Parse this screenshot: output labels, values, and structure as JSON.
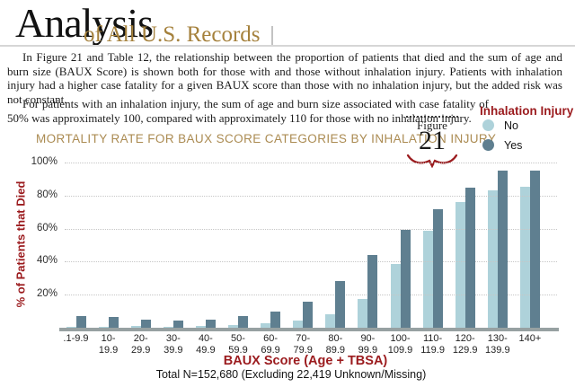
{
  "header": {
    "title": "Analysis",
    "subtitle": "of All U.S. Records"
  },
  "paragraphs": {
    "p1": "In Figure 21 and Table 12, the relationship between the proportion of patients that died and the sum of age and burn size (BAUX Score) is shown both for those with and those without inhalation injury.  Patients with inhalation injury had a higher case fatality for a given BAUX score than those with no inhalation injury, but the added risk was not constant.",
    "p2": "For patients with an inhalation injury, the sum of age and burn size associated with case fatality of 50% was approximately 100, compared with approximately 110 for those with no inhalation injury."
  },
  "figure_badge": {
    "label": "Figure",
    "number": "21"
  },
  "legend": {
    "title": "Inhalation Injury",
    "items": [
      {
        "label": "No",
        "color": "#aed2da"
      },
      {
        "label": "Yes",
        "color": "#5f7f90"
      }
    ]
  },
  "chart_data": {
    "type": "bar",
    "title": "MORTALITY RATE FOR BAUX SCORE CATEGORIES BY INHALATION INJURY",
    "xlabel": "BAUX Score (Age + TBSA)",
    "ylabel": "% of Patients that Died",
    "footnote": "Total N=152,680 (Excluding 22,419 Unknown/Missing)",
    "categories": [
      ".1-9.9",
      "10-19.9",
      "20-29.9",
      "30-39.9",
      "40-49.9",
      "50-59.9",
      "60-69.9",
      "70-79.9",
      "80-89.9",
      "90-99.9",
      "100-109.9",
      "110-119.9",
      "120-129.9",
      "130-139.9",
      "140+"
    ],
    "series": [
      {
        "name": "No",
        "color": "#aed2da",
        "values": [
          0.6,
          0.6,
          1.0,
          0.7,
          1.2,
          1.5,
          2.5,
          4.5,
          8,
          17.5,
          38.5,
          58.5,
          76,
          83,
          85.5
        ]
      },
      {
        "name": "Yes",
        "color": "#5f7f90",
        "values": [
          7,
          6.5,
          5,
          4.3,
          5,
          7.2,
          10,
          15.5,
          28.5,
          44,
          59,
          72,
          85,
          95,
          95
        ]
      }
    ],
    "y_ticks": [
      "100%",
      "80%",
      "60%",
      "40%",
      "20%"
    ],
    "y_tick_values": [
      100,
      80,
      60,
      40,
      20
    ],
    "ylim": [
      0,
      100
    ],
    "grid": "dotted horizontal",
    "legend_position": "top-right"
  },
  "colors": {
    "gold": "#a5813c",
    "chart_title_gold": "#ab8b52",
    "dark_red": "#9b1b1e",
    "bar_no": "#aed2da",
    "bar_yes": "#5f7f90",
    "axis_line": "#97a1a2"
  }
}
